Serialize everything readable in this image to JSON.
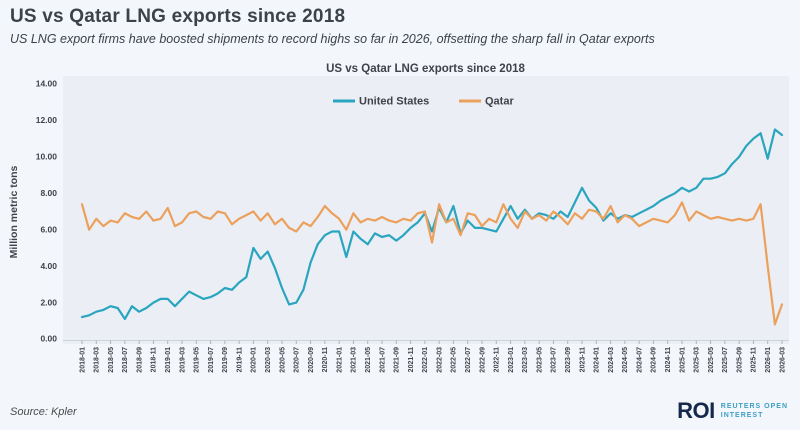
{
  "header": {
    "title": "US vs Qatar LNG exports since 2018",
    "subtitle": "US LNG export firms have boosted shipments to record highs so far in 2026, offsetting the sharp fall in Qatar exports"
  },
  "footer": {
    "source": "Source:  Kpler",
    "logo": {
      "abbr": "ROI",
      "line1": "REUTERS OPEN",
      "line2": "INTEREST"
    }
  },
  "chart_data": {
    "type": "line",
    "title": "US vs Qatar LNG exports since 2018",
    "ylabel": "Million metric tons",
    "xlabel": "",
    "ylim": [
      0,
      14
    ],
    "grid": false,
    "y_tick_labels": [
      "0.00",
      "2.00",
      "4.00",
      "6.00",
      "8.00",
      "10.00",
      "12.00",
      "14.00"
    ],
    "x_start": "2018-01",
    "x_end": "2026-03",
    "x_freq": "monthly",
    "x_tick_every_months": 2,
    "x_tick_labels": [
      "2018-01",
      "2018-03",
      "2018-05",
      "2018-07",
      "2018-09",
      "2018-11",
      "2019-01",
      "2019-03",
      "2019-05",
      "2019-07",
      "2019-09",
      "2019-11",
      "2020-01",
      "2020-03",
      "2020-05",
      "2020-07",
      "2020-09",
      "2020-11",
      "2021-01",
      "2021-03",
      "2021-05",
      "2021-07",
      "2021-09",
      "2021-11",
      "2022-01",
      "2022-03",
      "2022-05",
      "2022-07",
      "2022-09",
      "2022-11",
      "2023-01",
      "2023-03",
      "2023-05",
      "2023-07",
      "2023-09",
      "2023-11",
      "2024-01",
      "2024-03",
      "2024-05",
      "2024-07",
      "2024-09",
      "2024-11",
      "2025-01",
      "2025-03",
      "2025-05",
      "2025-07",
      "2025-09",
      "2025-11",
      "2026-01",
      "2026-03"
    ],
    "legend": {
      "position": "top-center"
    },
    "series": [
      {
        "name": "United States",
        "color": "#2aa5bf",
        "values": [
          1.2,
          1.3,
          1.5,
          1.6,
          1.8,
          1.7,
          1.1,
          1.8,
          1.5,
          1.7,
          2.0,
          2.2,
          2.2,
          1.8,
          2.2,
          2.6,
          2.4,
          2.2,
          2.3,
          2.5,
          2.8,
          2.7,
          3.1,
          3.4,
          5.0,
          4.4,
          4.8,
          3.9,
          2.8,
          1.9,
          2.0,
          2.7,
          4.2,
          5.2,
          5.7,
          5.9,
          5.9,
          4.5,
          5.9,
          5.5,
          5.2,
          5.8,
          5.6,
          5.7,
          5.4,
          5.7,
          6.1,
          6.4,
          6.9,
          5.9,
          7.2,
          6.4,
          7.3,
          5.8,
          6.5,
          6.1,
          6.1,
          6.0,
          5.9,
          6.6,
          7.3,
          6.6,
          7.1,
          6.6,
          6.9,
          6.8,
          6.6,
          7.0,
          6.7,
          7.5,
          8.3,
          7.6,
          7.2,
          6.5,
          6.9,
          6.6,
          6.8,
          6.7,
          6.9,
          7.1,
          7.3,
          7.6,
          7.8,
          8.0,
          8.3,
          8.1,
          8.3,
          8.8,
          8.8,
          8.9,
          9.1,
          9.6,
          10.0,
          10.6,
          11.0,
          11.3,
          9.9,
          11.5,
          11.2
        ]
      },
      {
        "name": "Qatar",
        "color": "#eba05c",
        "values": [
          7.4,
          6.0,
          6.6,
          6.2,
          6.5,
          6.4,
          6.9,
          6.7,
          6.6,
          7.0,
          6.5,
          6.6,
          7.2,
          6.2,
          6.4,
          6.9,
          7.0,
          6.7,
          6.6,
          7.0,
          6.9,
          6.3,
          6.6,
          6.8,
          7.0,
          6.5,
          6.9,
          6.3,
          6.6,
          6.1,
          5.9,
          6.4,
          6.2,
          6.7,
          7.3,
          6.9,
          6.6,
          6.0,
          6.9,
          6.4,
          6.6,
          6.5,
          6.7,
          6.5,
          6.4,
          6.6,
          6.5,
          6.9,
          7.0,
          5.3,
          7.4,
          6.4,
          6.6,
          5.7,
          6.9,
          6.8,
          6.2,
          6.6,
          6.4,
          7.4,
          6.6,
          6.1,
          7.0,
          6.6,
          6.8,
          6.5,
          7.0,
          6.7,
          6.3,
          6.9,
          6.6,
          7.1,
          7.0,
          6.6,
          7.3,
          6.4,
          6.8,
          6.6,
          6.2,
          6.4,
          6.6,
          6.5,
          6.4,
          6.8,
          7.5,
          6.5,
          7.0,
          6.8,
          6.6,
          6.7,
          6.6,
          6.5,
          6.6,
          6.5,
          6.6,
          7.4,
          4.0,
          0.8,
          1.9
        ]
      }
    ]
  }
}
